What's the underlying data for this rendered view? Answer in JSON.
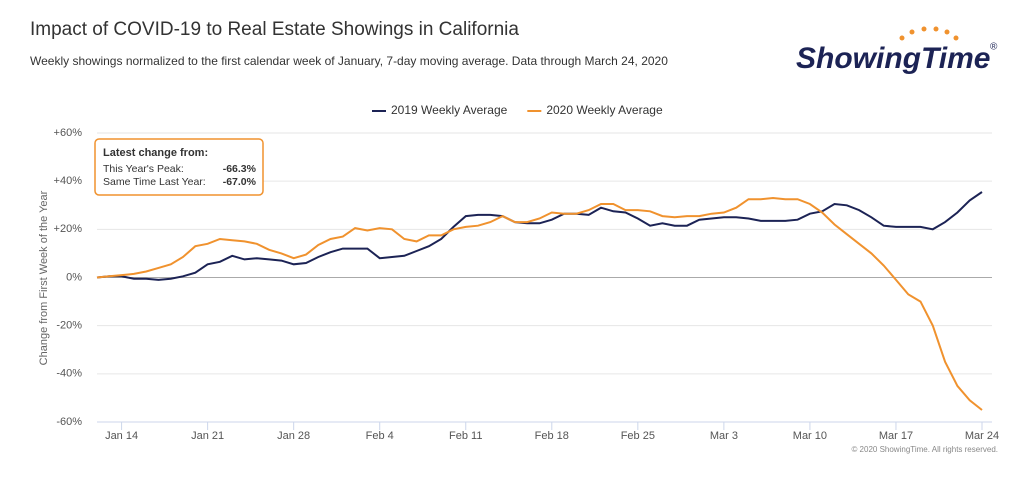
{
  "chart_data": {
    "type": "line",
    "title": "Impact of COVID-19 to Real Estate Showings in California",
    "subtitle": "Weekly showings normalized to the first calendar week of January, 7-day moving average. Data through March 24, 2020",
    "logo": "ShowingTime",
    "logo_mark": "®",
    "y_label": "Change from First Week of the Year",
    "copyright": "© 2020 ShowingTime. All rights reserved.",
    "annotation": {
      "heading": "Latest change from:",
      "rows": [
        [
          "This Year's Peak:",
          "-66.3%"
        ],
        [
          "Same Time Last Year:",
          "-67.0%"
        ]
      ]
    },
    "categories": [
      null,
      null,
      "Jan 14",
      null,
      null,
      null,
      null,
      null,
      null,
      "Jan 21",
      null,
      null,
      null,
      null,
      null,
      null,
      "Jan 28",
      null,
      null,
      null,
      null,
      null,
      null,
      "Feb 4",
      null,
      null,
      null,
      null,
      null,
      null,
      "Feb 11",
      null,
      null,
      null,
      null,
      null,
      null,
      "Feb 18",
      null,
      null,
      null,
      null,
      null,
      null,
      "Feb 25",
      null,
      null,
      null,
      null,
      null,
      null,
      "Mar 3",
      null,
      null,
      null,
      null,
      null,
      null,
      "Mar 10",
      null,
      null,
      null,
      null,
      null,
      null,
      "Mar 17",
      null,
      null,
      null,
      null,
      null,
      null,
      "Mar 24"
    ],
    "series": [
      {
        "name": "2019 Weekly Average",
        "color": "#1c2355",
        "values": [
          0,
          0.5,
          0.5,
          -0.5,
          -0.5,
          -1,
          -0.5,
          0.5,
          2,
          5.5,
          6.5,
          9,
          7.5,
          8,
          7.5,
          7,
          5.5,
          6,
          8.5,
          10.5,
          12,
          12,
          12,
          8,
          8.5,
          9,
          11,
          13,
          16,
          21,
          25.5,
          26,
          26,
          25.5,
          23,
          22.5,
          22.5,
          24,
          26.5,
          26.5,
          26,
          29,
          27.5,
          27,
          24.5,
          21.5,
          22.5,
          21.5,
          21.5,
          24,
          24.5,
          25,
          25,
          24.5,
          23.5,
          23.5,
          23.5,
          24,
          26.5,
          27.5,
          30.5,
          30,
          28,
          25,
          21.5,
          21,
          21,
          21,
          20,
          23,
          27,
          32,
          35.5
        ]
      },
      {
        "name": "2020 Weekly Average",
        "color": "#f0922e",
        "values": [
          0,
          0.5,
          1,
          1.5,
          2.5,
          4,
          5.5,
          8.5,
          13,
          14,
          16,
          15.5,
          15,
          14,
          11.5,
          10,
          8,
          9.5,
          13.5,
          16,
          17,
          20.5,
          19.5,
          20.5,
          20,
          16,
          15,
          17.5,
          17.5,
          20,
          21,
          21.5,
          23,
          25.5,
          23,
          23,
          24.5,
          27,
          26.5,
          26.5,
          28,
          30.5,
          30.5,
          28,
          28,
          27.5,
          25.5,
          25,
          25.5,
          25.5,
          26.5,
          27,
          29,
          32.5,
          32.5,
          33,
          32.5,
          32.5,
          30.5,
          27,
          22,
          18,
          14,
          10,
          5,
          -1,
          -7,
          -10,
          -20,
          -35,
          -45,
          -51,
          -55
        ]
      }
    ],
    "ylim": [
      -60,
      60
    ],
    "yticks": [
      {
        "value": -60,
        "label": "-60%"
      },
      {
        "value": -40,
        "label": "-40%"
      },
      {
        "value": -20,
        "label": "-20%"
      },
      {
        "value": 0,
        "label": "0%"
      },
      {
        "value": 20,
        "label": "+20%"
      },
      {
        "value": 40,
        "label": "+40%"
      },
      {
        "value": 60,
        "label": "+60%"
      }
    ],
    "grid": true,
    "legend": "top"
  }
}
